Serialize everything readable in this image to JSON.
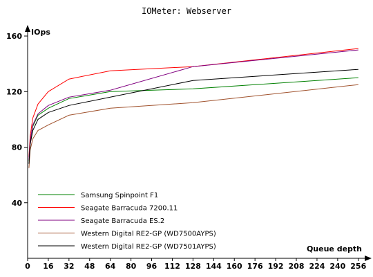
{
  "chart_data": {
    "type": "line",
    "title": "IOMeter: Webserver",
    "xlabel": "Queue depth",
    "ylabel": "IOps",
    "xlim": [
      0,
      262
    ],
    "ylim": [
      0,
      164
    ],
    "x_ticks": [
      0,
      16,
      32,
      48,
      64,
      80,
      96,
      112,
      128,
      144,
      160,
      176,
      192,
      208,
      224,
      240,
      256
    ],
    "x_tick_labels": [
      "0",
      "16",
      "32",
      "48",
      "64",
      "80",
      "96",
      "112",
      "128",
      "144",
      "160",
      "176",
      "192",
      "208",
      "224",
      "240",
      "256"
    ],
    "y_ticks": [
      40,
      80,
      120,
      160
    ],
    "y_tick_labels": [
      "40",
      "80",
      "120",
      "160"
    ],
    "grid": false,
    "legend_position": "bottom-left",
    "x": [
      1,
      2,
      4,
      8,
      16,
      32,
      64,
      128,
      256
    ],
    "series": [
      {
        "name": "Samsung Spinpoint F1",
        "color": "#008000",
        "values": [
          70,
          84,
          95,
          103,
          108,
          115,
          120,
          122,
          130
        ]
      },
      {
        "name": "Seagate Barracuda 7200.11",
        "color": "#ff0000",
        "values": [
          73,
          88,
          101,
          111,
          120,
          129,
          135,
          138,
          151
        ]
      },
      {
        "name": "Seagate Barracuda ES.2",
        "color": "#800080",
        "values": [
          71,
          85,
          96,
          104,
          110,
          116,
          121,
          138,
          150
        ]
      },
      {
        "name": "Western Digital RE2-GP (WD7500AYPS)",
        "color": "#a0522d",
        "values": [
          65,
          78,
          86,
          92,
          96,
          103,
          108,
          112,
          125
        ]
      },
      {
        "name": "Western Digital RE2-GP (WD7501AYPS)",
        "color": "#000000",
        "values": [
          68,
          82,
          92,
          100,
          105,
          110,
          116,
          128,
          136
        ]
      }
    ]
  }
}
